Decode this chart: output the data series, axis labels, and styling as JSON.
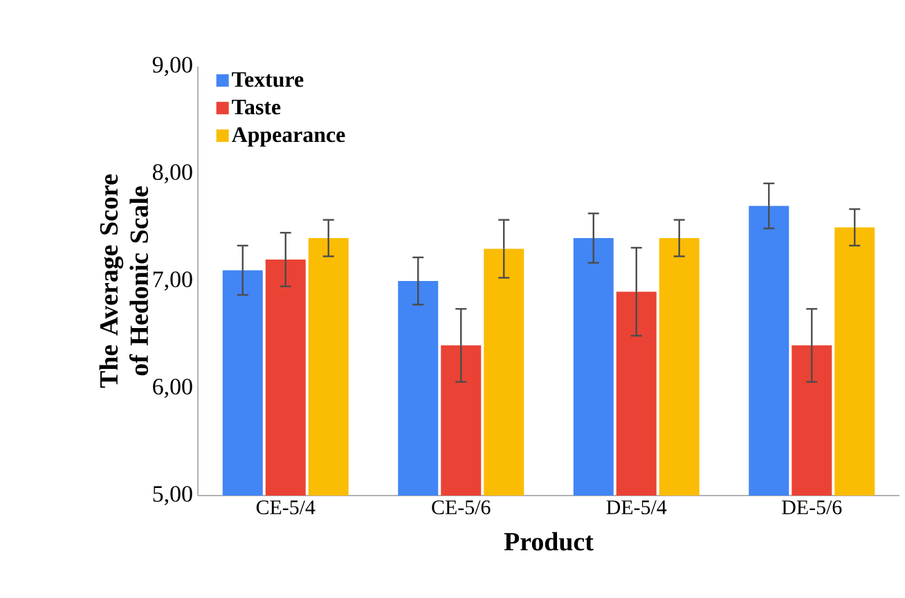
{
  "chart_data": {
    "type": "bar",
    "xlabel": "Product",
    "ylabel": "The Average Score of Hedonic Scale",
    "categories": [
      "CE-5/4",
      "CE-5/6",
      "DE-5/4",
      "DE-5/6"
    ],
    "series": [
      {
        "name": "Texture",
        "color": "#4285f4",
        "values": [
          7.1,
          7.0,
          7.4,
          7.7
        ],
        "errors": [
          0.23,
          0.22,
          0.23,
          0.21
        ]
      },
      {
        "name": "Taste",
        "color": "#ea4335",
        "values": [
          7.2,
          6.4,
          6.9,
          6.4
        ],
        "errors": [
          0.25,
          0.34,
          0.41,
          0.34
        ]
      },
      {
        "name": "Appearance",
        "color": "#fbbc04",
        "values": [
          7.4,
          7.3,
          7.4,
          7.5
        ],
        "errors": [
          0.17,
          0.27,
          0.17,
          0.17
        ]
      }
    ],
    "ylim": [
      5,
      9
    ],
    "yticks": [
      {
        "value": 5,
        "label": "5,00"
      },
      {
        "value": 6,
        "label": "6,00"
      },
      {
        "value": 7,
        "label": "7,00"
      },
      {
        "value": 8,
        "label": "8,00"
      },
      {
        "value": 9,
        "label": "9,00"
      }
    ],
    "grid": false,
    "legend": "top left"
  }
}
